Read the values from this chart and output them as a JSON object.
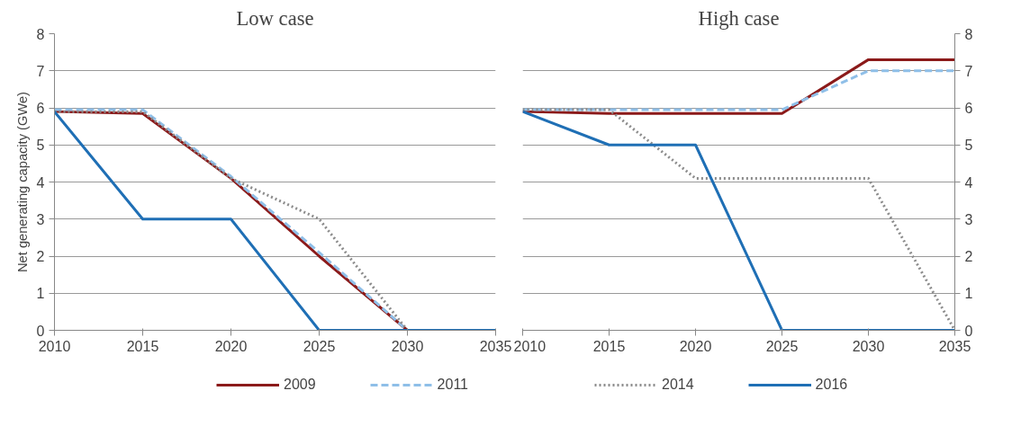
{
  "chart_data": [
    {
      "type": "line",
      "title": "Low case",
      "ylabel": "Net generating capacity (GWe)",
      "x": [
        2010,
        2015,
        2020,
        2025,
        2030,
        2035
      ],
      "xlim": [
        2010,
        2035
      ],
      "xticks": [
        2010,
        2015,
        2020,
        2025,
        2030,
        2035
      ],
      "ylim": [
        0,
        8
      ],
      "yticks": [
        0,
        1,
        2,
        3,
        4,
        5,
        6,
        7,
        8
      ],
      "grid": "y",
      "legend": "bottom",
      "marker": "none",
      "series": [
        {
          "name": "2009",
          "color": "#8b1a1a",
          "line_style": "solid",
          "values": [
            5.9,
            5.85,
            4.1,
            2.0,
            0,
            0
          ]
        },
        {
          "name": "2011",
          "color": "#8fbfe8",
          "line_style": "dashed",
          "values": [
            5.95,
            5.95,
            4.15,
            2.1,
            0,
            0
          ]
        },
        {
          "color": "#8c8c8c",
          "line_style": "dotted",
          "values": [
            5.9,
            5.9,
            4.1,
            3.0,
            0,
            0
          ]
        },
        {
          "color": "#1f6fb5",
          "line_style": "solid",
          "values": [
            5.9,
            3.0,
            3.0,
            0,
            0,
            0
          ]
        }
      ]
    },
    {
      "type": "line",
      "title": "High case",
      "x": [
        2010,
        2015,
        2020,
        2025,
        2030,
        2035
      ],
      "xlim": [
        2010,
        2035
      ],
      "xticks": [
        2010,
        2015,
        2020,
        2025,
        2030,
        2035
      ],
      "ylim": [
        0,
        8
      ],
      "yticks": [
        0,
        1,
        2,
        3,
        4,
        5,
        6,
        7,
        8
      ],
      "grid": "y",
      "legend": "bottom",
      "marker": "none",
      "series": [
        {
          "color": "#8b1a1a",
          "line_style": "solid",
          "values": [
            5.9,
            5.85,
            5.85,
            5.85,
            7.3,
            7.3
          ]
        },
        {
          "color": "#8fbfe8",
          "line_style": "dashed",
          "values": [
            5.95,
            5.95,
            5.95,
            5.95,
            7.0,
            7.0
          ]
        },
        {
          "name": "2014",
          "color": "#8c8c8c",
          "line_style": "dotted",
          "values": [
            5.95,
            5.95,
            4.1,
            4.1,
            4.1,
            0
          ]
        },
        {
          "name": "2016",
          "color": "#1f6fb5",
          "line_style": "solid",
          "values": [
            5.9,
            5.0,
            5.0,
            0,
            0,
            0
          ]
        }
      ]
    }
  ]
}
